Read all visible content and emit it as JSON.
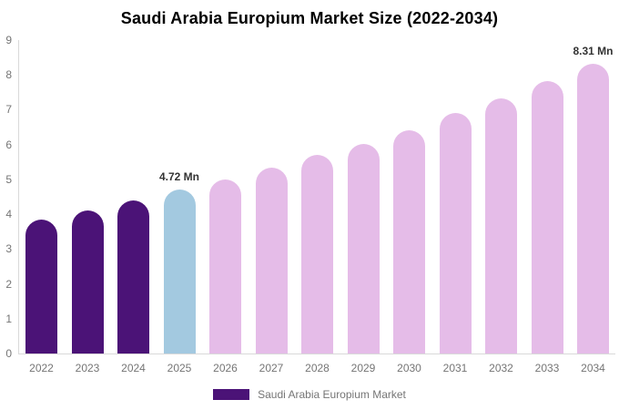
{
  "title": "Saudi Arabia Europium Market Size (2022-2034)",
  "chart_data": {
    "type": "bar",
    "title": "Saudi Arabia Europium Market Size (2022-2034)",
    "xlabel": "",
    "ylabel": "",
    "categories": [
      "2022",
      "2023",
      "2024",
      "2025",
      "2026",
      "2027",
      "2028",
      "2029",
      "2030",
      "2031",
      "2032",
      "2033",
      "2034"
    ],
    "values": [
      3.85,
      4.12,
      4.4,
      4.72,
      5.0,
      5.35,
      5.7,
      6.03,
      6.42,
      6.9,
      7.32,
      7.81,
      8.31
    ],
    "point_labels": [
      "",
      "",
      "",
      "4.72 Mn",
      "",
      "",
      "",
      "",
      "",
      "",
      "",
      "",
      "8.31 Mn"
    ],
    "bar_colors": [
      "#4B1377",
      "#4B1377",
      "#4B1377",
      "#A3C9E0",
      "#E5BCE8",
      "#E5BCE8",
      "#E5BCE8",
      "#E5BCE8",
      "#E5BCE8",
      "#E5BCE8",
      "#E5BCE8",
      "#E5BCE8",
      "#E5BCE8"
    ],
    "ylim": [
      0,
      9
    ],
    "y_ticks": [
      0,
      1,
      2,
      3,
      4,
      5,
      6,
      7,
      8,
      9
    ],
    "grid": false,
    "legend": {
      "position": "bottom",
      "items": [
        {
          "label": "Saudi Arabia Europium Market",
          "color": "#4B1377"
        }
      ]
    }
  },
  "colors": {
    "background": "#FFFFFF",
    "title_text": "#000000",
    "axis_line": "#D9D9D9",
    "tick_label": "#757575",
    "data_label": "#333333",
    "series_purple": "#4B1377",
    "series_blue": "#A3C9E0",
    "series_pink": "#E5BCE8"
  }
}
